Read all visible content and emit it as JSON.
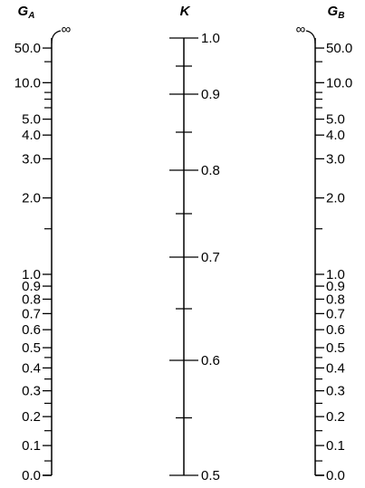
{
  "titles": {
    "left_main": "G",
    "left_sub": "A",
    "center": "K",
    "right_main": "G",
    "right_sub": "B"
  },
  "infinity_symbol": "∞",
  "g_scale": {
    "labeled": [
      {
        "label": "50.0",
        "value": 50
      },
      {
        "label": "10.0",
        "value": 10
      },
      {
        "label": "5.0",
        "value": 5
      },
      {
        "label": "4.0",
        "value": 4
      },
      {
        "label": "3.0",
        "value": 3
      },
      {
        "label": "2.0",
        "value": 2
      },
      {
        "label": "1.0",
        "value": 1
      },
      {
        "label": "0.9",
        "value": 0.9
      },
      {
        "label": "0.8",
        "value": 0.8
      },
      {
        "label": "0.7",
        "value": 0.7
      },
      {
        "label": "0.6",
        "value": 0.6
      },
      {
        "label": "0.5",
        "value": 0.5
      },
      {
        "label": "0.4",
        "value": 0.4
      },
      {
        "label": "0.3",
        "value": 0.3
      },
      {
        "label": "0.2",
        "value": 0.2
      },
      {
        "label": "0.1",
        "value": 0.1
      },
      {
        "label": "0.0",
        "value": 0
      }
    ],
    "minor_values": [
      20,
      8,
      7,
      6,
      1.5,
      0.45,
      0.35,
      0.25,
      0.15,
      0.05
    ]
  },
  "k_scale": {
    "labeled": [
      {
        "label": "1.0",
        "value": 1.0
      },
      {
        "label": "0.9",
        "value": 0.9
      },
      {
        "label": "0.8",
        "value": 0.8
      },
      {
        "label": "0.7",
        "value": 0.7
      },
      {
        "label": "0.6",
        "value": 0.6
      },
      {
        "label": "0.5",
        "value": 0.5
      }
    ],
    "minor_values": [
      0.95,
      0.85,
      0.75,
      0.65,
      0.55
    ]
  }
}
